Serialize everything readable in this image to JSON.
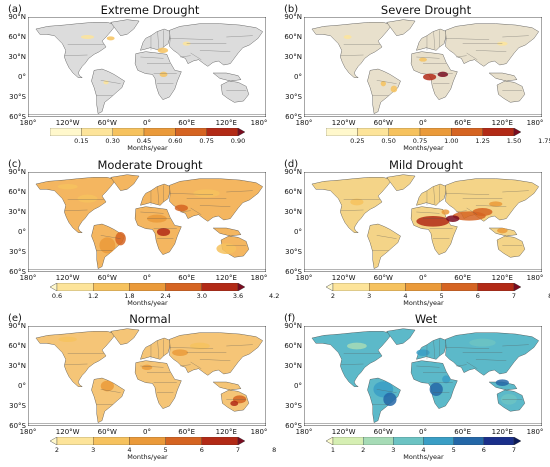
{
  "map": {
    "lat_labels": [
      "90°N",
      "60°N",
      "30°N",
      "0°",
      "30°S",
      "60°S"
    ],
    "lon_labels": [
      "180°",
      "120°W",
      "60°W",
      "0°",
      "60°E",
      "120°E",
      "180°"
    ],
    "land_color": "#dcdcdc",
    "ocean_color": "#ffffff"
  },
  "panels": [
    {
      "label": "(a)",
      "title": "Extreme Drought",
      "unit": "Months/year",
      "ticks": [
        "0.15",
        "0.30",
        "0.45",
        "0.60",
        "0.75",
        "0.90"
      ],
      "colors": [
        "#fff8cc",
        "#fde49a",
        "#f6c25e",
        "#ea9a3a",
        "#d56422",
        "#b22a16",
        "#7a0b1f"
      ],
      "extend": "max"
    },
    {
      "label": "(b)",
      "title": "Severe Drought",
      "unit": "Months/year",
      "ticks": [
        "0.25",
        "0.50",
        "0.75",
        "1.00",
        "1.25",
        "1.50",
        "1.75"
      ],
      "colors": [
        "#fff8cc",
        "#fde49a",
        "#f6c25e",
        "#ea9a3a",
        "#d56422",
        "#b22a16",
        "#7a0b1f"
      ],
      "extend": "max"
    },
    {
      "label": "(c)",
      "title": "Moderate Drought",
      "unit": "Months/year",
      "ticks": [
        "0.6",
        "1.2",
        "1.8",
        "2.4",
        "3.0",
        "3.6",
        "4.2"
      ],
      "colors": [
        "#fff8cc",
        "#fde49a",
        "#f6c25e",
        "#ea9a3a",
        "#d56422",
        "#b22a16",
        "#7a0b1f"
      ],
      "extend": "both"
    },
    {
      "label": "(d)",
      "title": "Mild Drought",
      "unit": "Months/year",
      "ticks": [
        "2",
        "3",
        "4",
        "5",
        "6",
        "7",
        "8"
      ],
      "colors": [
        "#fff8cc",
        "#fde49a",
        "#f6c25e",
        "#ea9a3a",
        "#d56422",
        "#b22a16",
        "#7a0b1f"
      ],
      "extend": "both"
    },
    {
      "label": "(e)",
      "title": "Normal",
      "unit": "Months/year",
      "ticks": [
        "2",
        "3",
        "4",
        "5",
        "6",
        "7",
        "8"
      ],
      "colors": [
        "#fff8cc",
        "#fde49a",
        "#f6c25e",
        "#ea9a3a",
        "#d56422",
        "#b22a16",
        "#7a0b1f"
      ],
      "extend": "both"
    },
    {
      "label": "(f)",
      "title": "Wet",
      "unit": "Months/year",
      "ticks": [
        "1",
        "2",
        "3",
        "4",
        "5",
        "6",
        "7"
      ],
      "colors": [
        "#fcfccd",
        "#d6efb3",
        "#a6dbb6",
        "#6cc3c3",
        "#3a9ec5",
        "#2467a7",
        "#1a2f8a",
        "#0b1a5a"
      ],
      "extend": "both"
    }
  ]
}
